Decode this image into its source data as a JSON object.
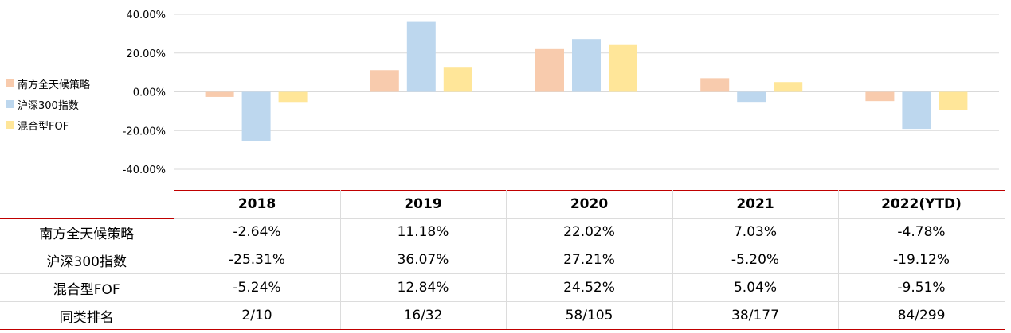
{
  "colors": {
    "series": [
      "#f8cbad",
      "#bdd7ee",
      "#ffe699"
    ],
    "grid": "#d9d9d9",
    "table_border": "#c00000"
  },
  "legend": [
    {
      "label": "南方全天候策略"
    },
    {
      "label": "沪深300指数"
    },
    {
      "label": "混合型FOF"
    }
  ],
  "chart_data": {
    "type": "bar",
    "categories": [
      "2018",
      "2019",
      "2020",
      "2021",
      "2022(YTD)"
    ],
    "series": [
      {
        "name": "南方全天候策略",
        "values": [
          -2.64,
          11.18,
          22.02,
          7.03,
          -4.78
        ]
      },
      {
        "name": "沪深300指数",
        "values": [
          -25.31,
          36.07,
          27.21,
          -5.2,
          -19.12
        ]
      },
      {
        "name": "混合型FOF",
        "values": [
          -5.24,
          12.84,
          24.52,
          5.04,
          -9.51
        ]
      }
    ],
    "ylim": [
      -40,
      40
    ],
    "yticks": [
      "40.00%",
      "20.00%",
      "0.00%",
      "-20.00%",
      "-40.00%"
    ],
    "grid": true,
    "legend_position": "left"
  },
  "table": {
    "header": [
      "2018",
      "2019",
      "2020",
      "2021",
      "2022(YTD)"
    ],
    "rows": [
      {
        "label": "南方全天候策略",
        "cells": [
          "-2.64%",
          "11.18%",
          "22.02%",
          "7.03%",
          "-4.78%"
        ]
      },
      {
        "label": "沪深300指数",
        "cells": [
          "-25.31%",
          "36.07%",
          "27.21%",
          "-5.20%",
          "-19.12%"
        ]
      },
      {
        "label": "混合型FOF",
        "cells": [
          "-5.24%",
          "12.84%",
          "24.52%",
          "5.04%",
          "-9.51%"
        ]
      },
      {
        "label": "同类排名",
        "cells": [
          "2/10",
          "16/32",
          "58/105",
          "38/177",
          "84/299"
        ]
      }
    ]
  }
}
